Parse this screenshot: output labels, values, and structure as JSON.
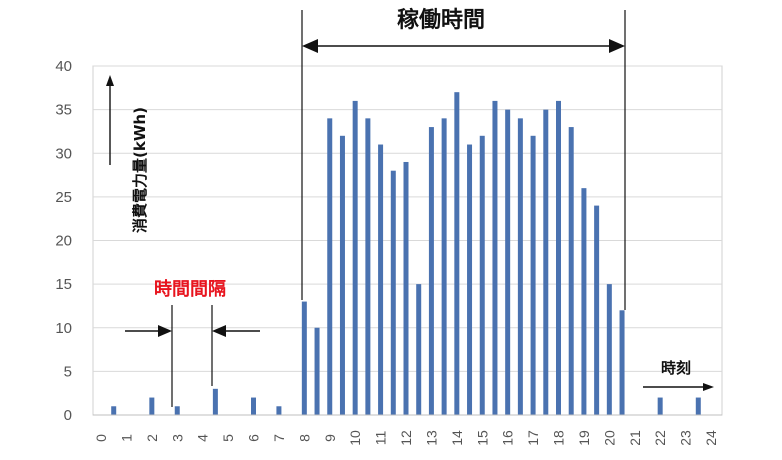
{
  "chart_data": {
    "type": "bar",
    "title": "",
    "ylabel": "消費電力量(kWh)",
    "xlabel": "時刻",
    "ylim": [
      0,
      40
    ],
    "xlim": [
      0,
      24
    ],
    "yticks": [
      0,
      5,
      10,
      15,
      20,
      25,
      30,
      35,
      40
    ],
    "xticks": [
      "0",
      "1",
      "2",
      "3",
      "4",
      "5",
      "6",
      "7",
      "8",
      "9",
      "10",
      "11",
      "12",
      "13",
      "14",
      "15",
      "16",
      "17",
      "18",
      "19",
      "20",
      "21",
      "22",
      "23",
      "24"
    ],
    "grid": true,
    "bar_color": "#4a72b0",
    "x": [
      0.5,
      2,
      3,
      4.5,
      6,
      7,
      8,
      8.5,
      9,
      9.5,
      10,
      10.5,
      11,
      11.5,
      12,
      12.5,
      13,
      13.5,
      14,
      14.5,
      15,
      15.5,
      16,
      16.5,
      17,
      17.5,
      18,
      18.5,
      19,
      19.5,
      20,
      20.5,
      22,
      23.5
    ],
    "values": [
      1,
      2,
      1,
      3,
      2,
      1,
      13,
      10,
      34,
      32,
      36,
      34,
      31,
      28,
      29,
      15,
      33,
      34,
      37,
      31,
      32,
      36,
      35,
      34,
      32,
      35,
      36,
      33,
      26,
      24,
      15,
      12,
      2,
      2
    ]
  },
  "annotations": {
    "operating_time": "稼働時間",
    "interval": "時間間隔",
    "time_axis": "時刻",
    "ylabel": "消費電力量(kWh)"
  },
  "colors": {
    "bar": "#4a72b0",
    "grid": "#d9d9d9",
    "axis_text": "#555555",
    "red_text": "#e8141e",
    "annotation": "#111111"
  }
}
